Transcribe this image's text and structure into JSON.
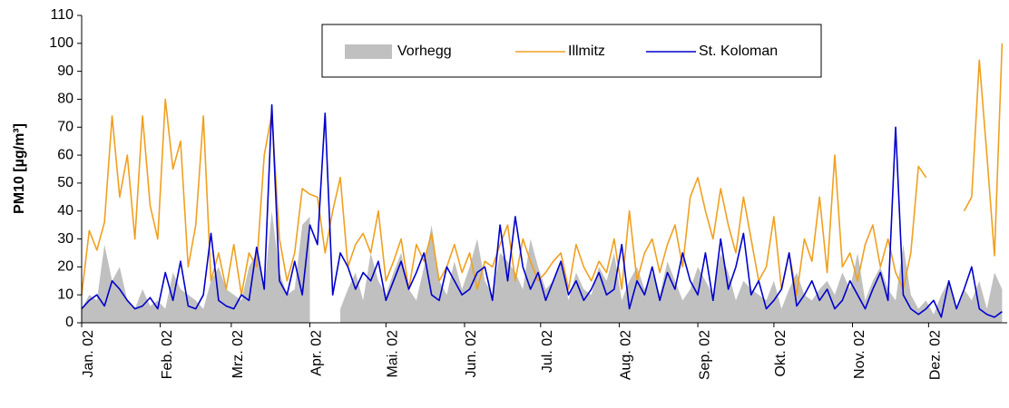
{
  "chart_data": {
    "type": "line",
    "y_label": "PM10 [µg/m³]",
    "x": [
      1,
      4,
      7,
      10,
      13,
      16,
      19,
      22,
      25,
      28,
      31,
      34,
      37,
      40,
      43,
      46,
      49,
      52,
      55,
      58,
      61,
      64,
      67,
      70,
      73,
      76,
      79,
      82,
      85,
      88,
      91,
      94,
      97,
      100,
      103,
      106,
      109,
      112,
      115,
      118,
      121,
      124,
      127,
      130,
      133,
      136,
      139,
      142,
      145,
      148,
      151,
      154,
      157,
      160,
      163,
      166,
      169,
      172,
      175,
      178,
      181,
      184,
      187,
      190,
      193,
      196,
      199,
      202,
      205,
      208,
      211,
      214,
      217,
      220,
      223,
      226,
      229,
      232,
      235,
      238,
      241,
      244,
      247,
      250,
      253,
      256,
      259,
      262,
      265,
      268,
      271,
      274,
      277,
      280,
      283,
      286,
      289,
      292,
      295,
      298,
      301,
      304,
      307,
      310,
      313,
      316,
      319,
      322,
      325,
      328,
      331,
      334,
      337,
      340,
      343,
      346,
      349,
      352,
      355,
      358,
      361,
      364
    ],
    "xlim": [
      1,
      366
    ],
    "xticks": [
      {
        "value": 1,
        "label": "Jan. 02"
      },
      {
        "value": 32,
        "label": "Feb. 02"
      },
      {
        "value": 60,
        "label": "Mrz. 02"
      },
      {
        "value": 91,
        "label": "Apr. 02"
      },
      {
        "value": 121,
        "label": "Mai. 02"
      },
      {
        "value": 152,
        "label": "Jun. 02"
      },
      {
        "value": 182,
        "label": "Jul. 02"
      },
      {
        "value": 213,
        "label": "Aug. 02"
      },
      {
        "value": 244,
        "label": "Sep. 02"
      },
      {
        "value": 274,
        "label": "Okt. 02"
      },
      {
        "value": 305,
        "label": "Nov. 02"
      },
      {
        "value": 335,
        "label": "Dez. 02"
      }
    ],
    "ylim": [
      0,
      110
    ],
    "yticks": [
      0,
      10,
      20,
      30,
      40,
      50,
      60,
      70,
      80,
      90,
      100,
      110
    ],
    "legend": "top",
    "series": [
      {
        "name": "Vorhegg",
        "color": "#c0c0c0",
        "style": "area",
        "values": [
          5,
          10,
          8,
          28,
          15,
          20,
          8,
          5,
          12,
          6,
          8,
          5,
          18,
          12,
          10,
          8,
          5,
          15,
          20,
          12,
          10,
          8,
          20,
          25,
          12,
          40,
          18,
          10,
          12,
          35,
          38,
          null,
          null,
          null,
          5,
          12,
          18,
          8,
          25,
          15,
          10,
          18,
          25,
          12,
          8,
          20,
          35,
          15,
          10,
          22,
          12,
          20,
          30,
          15,
          10,
          25,
          22,
          18,
          12,
          30,
          20,
          12,
          15,
          22,
          8,
          18,
          12,
          10,
          20,
          15,
          25,
          8,
          15,
          20,
          12,
          18,
          10,
          22,
          15,
          8,
          12,
          20,
          15,
          10,
          25,
          18,
          8,
          15,
          12,
          10,
          8,
          15,
          5,
          12,
          18,
          10,
          8,
          12,
          15,
          10,
          18,
          12,
          25,
          8,
          15,
          20,
          12,
          8,
          28,
          10,
          5,
          8,
          3,
          10,
          15,
          5,
          12,
          8,
          15,
          5,
          18,
          12
        ]
      },
      {
        "name": "Illmitz",
        "color": "#f0a020",
        "style": "line",
        "values": [
          10,
          33,
          26,
          36,
          74,
          45,
          60,
          30,
          74,
          42,
          30,
          80,
          55,
          65,
          20,
          35,
          74,
          15,
          25,
          12,
          28,
          10,
          25,
          20,
          60,
          75,
          30,
          15,
          25,
          48,
          46,
          45,
          25,
          40,
          52,
          20,
          28,
          32,
          25,
          40,
          15,
          22,
          30,
          12,
          28,
          22,
          32,
          15,
          20,
          28,
          18,
          25,
          12,
          22,
          20,
          28,
          35,
          15,
          30,
          22,
          15,
          18,
          22,
          25,
          12,
          28,
          20,
          15,
          22,
          18,
          30,
          12,
          40,
          15,
          25,
          30,
          18,
          28,
          35,
          20,
          45,
          52,
          40,
          30,
          48,
          35,
          25,
          45,
          30,
          15,
          20,
          38,
          12,
          25,
          10,
          30,
          22,
          45,
          18,
          60,
          20,
          25,
          15,
          28,
          35,
          20,
          30,
          18,
          12,
          25,
          56,
          52,
          null,
          null,
          null,
          null,
          40,
          45,
          94,
          60,
          24,
          100
        ]
      },
      {
        "name": "St. Koloman",
        "color": "#0000cc",
        "style": "line",
        "values": [
          5,
          8,
          10,
          6,
          15,
          12,
          8,
          5,
          6,
          9,
          5,
          18,
          8,
          22,
          6,
          5,
          10,
          32,
          8,
          6,
          5,
          10,
          8,
          27,
          12,
          78,
          15,
          10,
          22,
          10,
          35,
          28,
          75,
          10,
          25,
          20,
          12,
          18,
          15,
          22,
          8,
          15,
          22,
          12,
          18,
          25,
          10,
          8,
          20,
          15,
          10,
          12,
          18,
          20,
          8,
          35,
          15,
          38,
          20,
          12,
          18,
          8,
          15,
          22,
          10,
          15,
          8,
          12,
          18,
          10,
          12,
          28,
          5,
          15,
          10,
          20,
          8,
          18,
          12,
          25,
          15,
          10,
          25,
          8,
          30,
          12,
          20,
          32,
          10,
          15,
          5,
          8,
          12,
          25,
          6,
          10,
          15,
          8,
          12,
          5,
          8,
          15,
          10,
          5,
          12,
          18,
          8,
          70,
          10,
          5,
          3,
          5,
          8,
          2,
          15,
          5,
          12,
          20,
          5,
          3,
          2,
          4
        ]
      }
    ]
  }
}
